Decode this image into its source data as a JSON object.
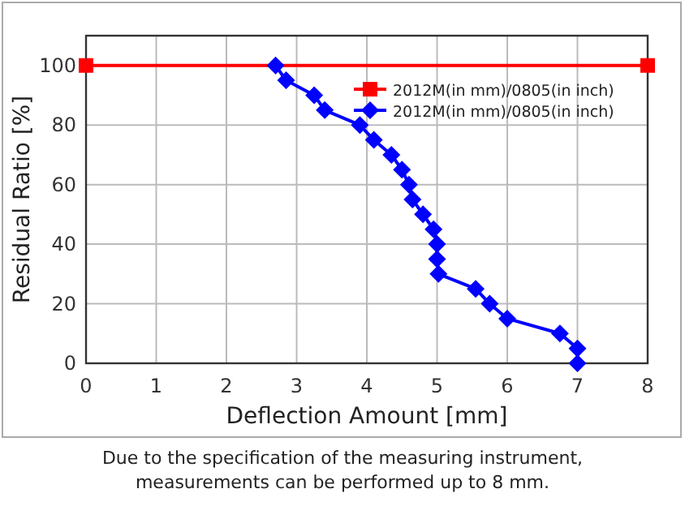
{
  "chart_data": {
    "type": "line",
    "xlabel": "Deflection Amount [mm]",
    "ylabel": "Residual Ratio  [%]",
    "xlim": [
      0,
      8
    ],
    "xticks": [
      0,
      1,
      2,
      3,
      4,
      5,
      6,
      7,
      8
    ],
    "ylim": [
      0,
      110
    ],
    "yticks": [
      0,
      20,
      40,
      60,
      80,
      100
    ],
    "grid": true,
    "legend": "top right",
    "series": [
      {
        "name": "2012M(in mm)/0805(in inch)",
        "color": "#ff0000",
        "marker": "square",
        "x": [
          0,
          8
        ],
        "values": [
          100,
          100
        ]
      },
      {
        "name": "2012M(in mm)/0805(in inch)",
        "color": "#0000ff",
        "marker": "diamond",
        "x": [
          2.7,
          2.85,
          3.25,
          3.4,
          3.9,
          4.1,
          4.35,
          4.5,
          4.6,
          4.65,
          4.8,
          4.95,
          5.0,
          5.0,
          5.02,
          5.55,
          5.75,
          6.0,
          6.75,
          7.0,
          7.0
        ],
        "values": [
          100,
          95,
          90,
          85,
          80,
          75,
          70,
          65,
          60,
          55,
          50,
          45,
          40,
          35,
          30,
          25,
          20,
          15,
          10,
          5,
          0
        ]
      }
    ],
    "annotations": [
      "Due to the specification of the measuring instrument,\nmeasurements can be performed up to 8 mm."
    ]
  }
}
